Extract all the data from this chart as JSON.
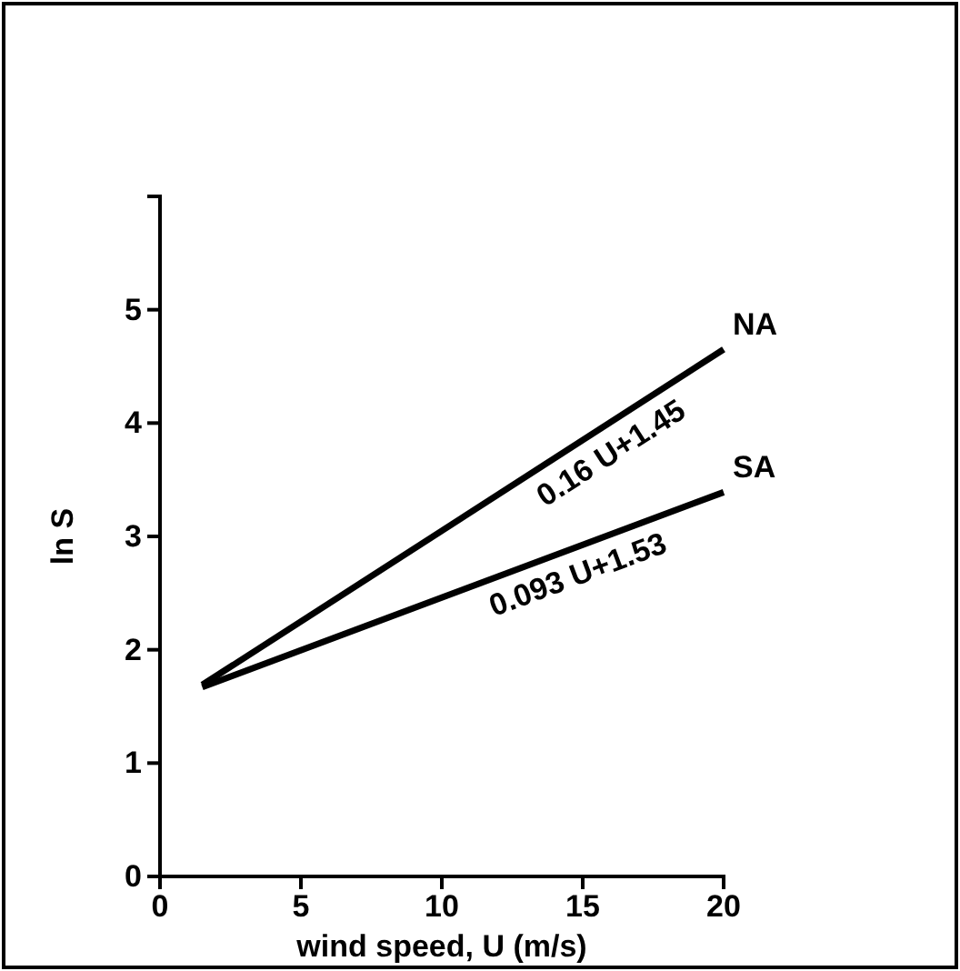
{
  "chart_data": {
    "type": "line",
    "xlabel": "wind speed, U  (m/s)",
    "ylabel": "ln S",
    "x": [
      1.5,
      20
    ],
    "xlim": [
      0,
      20
    ],
    "xticks": [
      0,
      5,
      10,
      15,
      20
    ],
    "ylim": [
      0,
      6
    ],
    "yticks": [
      0,
      1,
      2,
      3,
      4,
      5
    ],
    "series": [
      {
        "name": "NA",
        "color": "#000000",
        "values": [
          1.69,
          4.65
        ]
      },
      {
        "name": "SA",
        "color": "#000000",
        "values": [
          1.67,
          3.39
        ]
      }
    ],
    "annotations": [
      {
        "text": "0.16 U+1.45",
        "x": 15.5,
        "y": 3.93
      },
      {
        "text": "0.093 U+1.53",
        "x": 14.5,
        "y": 2.88
      }
    ],
    "grid": false,
    "marker": "none",
    "line_style": "solid"
  }
}
